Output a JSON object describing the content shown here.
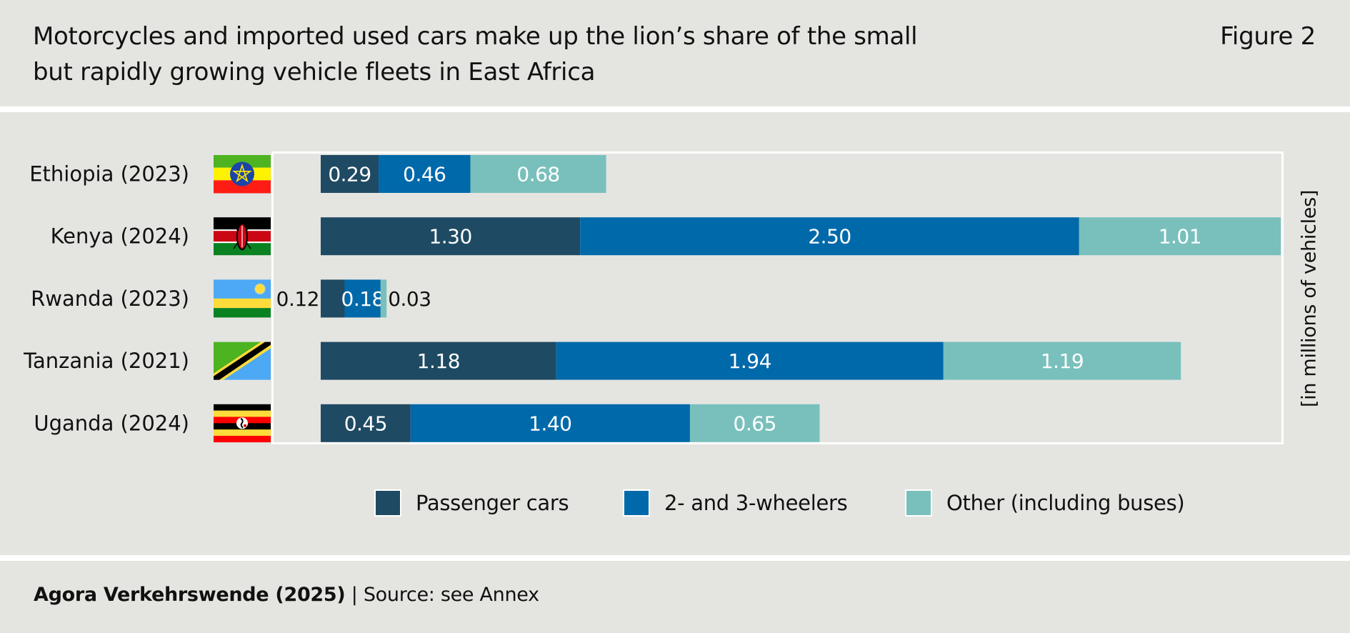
{
  "header": {
    "title_line1": "Motorcycles and imported used cars make up the lion’s share of the small",
    "title_line2": "but rapidly growing vehicle fleets in East Africa",
    "figure_label": "Figure 2"
  },
  "footer": {
    "organization": "Agora Verkehrswende (2025)",
    "separator": " | ",
    "source": "Source: see Annex"
  },
  "colors": {
    "background": "#e4e5e1",
    "passenger_cars": "#1f4a63",
    "two_three_wheelers": "#0069aa",
    "other": "#79c0bc",
    "frame": "#ffffff"
  },
  "chart_data": {
    "type": "bar",
    "orientation": "horizontal",
    "stacked": true,
    "title": "Motorcycles and imported used cars make up the lion’s share of the small but rapidly growing vehicle fleets in East Africa",
    "xlabel": "[in millions of vehicles]",
    "ylabel": "",
    "categories": [
      "Ethiopia (2023)",
      "Kenya (2024)",
      "Rwanda (2023)",
      "Tanzania (2021)",
      "Uganda (2024)"
    ],
    "flags": [
      "ethiopia-flag",
      "kenya-flag",
      "rwanda-flag",
      "tanzania-flag",
      "uganda-flag"
    ],
    "series": [
      {
        "name": "Passenger cars",
        "color": "#1f4a63",
        "values": [
          0.29,
          1.3,
          0.12,
          1.18,
          0.45
        ],
        "labels": [
          "0.29",
          "1.30",
          "0.12",
          "1.18",
          "0.45"
        ]
      },
      {
        "name": "2- and 3-wheelers",
        "color": "#0069aa",
        "values": [
          0.46,
          2.5,
          0.18,
          1.94,
          1.4
        ],
        "labels": [
          "0.46",
          "2.50",
          "0.18",
          "1.94",
          "1.40"
        ]
      },
      {
        "name": "Other (including buses)",
        "color": "#79c0bc",
        "values": [
          0.68,
          1.01,
          0.03,
          1.19,
          0.65
        ],
        "labels": [
          "0.68",
          "1.01",
          "0.03",
          "1.19",
          "0.65"
        ]
      }
    ],
    "xlim": [
      0,
      4.81
    ],
    "grid": false,
    "axis_ticks_shown": false,
    "legend_position": "bottom"
  }
}
